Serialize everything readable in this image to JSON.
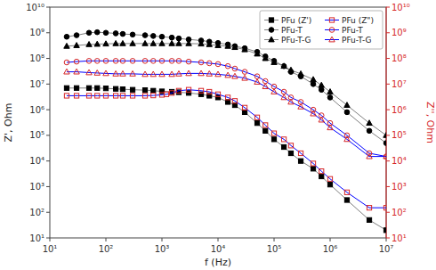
{
  "chart_data": {
    "type": "line",
    "log": true,
    "grid": false,
    "legend": "upper right",
    "xlabel": "f (Hz)",
    "ylabel": "Z', Ohm",
    "y2label": "Z'', Ohm",
    "xlim": [
      10,
      10000000
    ],
    "ylim": [
      10,
      10000000000
    ],
    "y2lim": [
      10,
      10000000000
    ],
    "xticks": [
      {
        "value": 10,
        "label": "10¹"
      },
      {
        "value": 100,
        "label": "10²"
      },
      {
        "value": 1000,
        "label": "10³"
      },
      {
        "value": 10000,
        "label": "10⁴"
      },
      {
        "value": 100000,
        "label": "10⁵"
      },
      {
        "value": 1000000,
        "label": "10⁶"
      },
      {
        "value": 10000000,
        "label": "10⁷"
      }
    ],
    "yticks": [
      {
        "value": 10,
        "label": "10¹"
      },
      {
        "value": 100,
        "label": "10²"
      },
      {
        "value": 1000,
        "label": "10³"
      },
      {
        "value": 10000,
        "label": "10⁴"
      },
      {
        "value": 100000,
        "label": "10⁵"
      },
      {
        "value": 1000000,
        "label": "10⁶"
      },
      {
        "value": 10000000,
        "label": "10⁷"
      },
      {
        "value": 100000000,
        "label": "10⁸"
      },
      {
        "value": 1000000000,
        "label": "10⁹"
      },
      {
        "value": 10000000000,
        "label": "10¹⁰"
      }
    ],
    "y2ticks": [
      {
        "value": 10,
        "label": "10¹"
      },
      {
        "value": 100,
        "label": "10²"
      },
      {
        "value": 1000,
        "label": "10³"
      },
      {
        "value": 10000,
        "label": "10⁴"
      },
      {
        "value": 100000,
        "label": "10⁵"
      },
      {
        "value": 1000000,
        "label": "10⁶"
      },
      {
        "value": 10000000,
        "label": "10⁷"
      },
      {
        "value": 100000000,
        "label": "10⁸"
      },
      {
        "value": 1000000000,
        "label": "10⁹"
      },
      {
        "value": 10000000000,
        "label": "10¹⁰"
      }
    ],
    "series": [
      {
        "name": "PFu (Z')",
        "axis": "y",
        "color": "gray",
        "marker": "square",
        "line_style": "solid",
        "x": [
          20,
          30,
          50,
          70,
          100,
          150,
          200,
          300,
          500,
          700,
          1000,
          1500,
          2000,
          3000,
          5000,
          7000,
          10000,
          15000,
          20000,
          30000,
          50000,
          70000,
          100000,
          150000,
          200000,
          300000,
          500000,
          700000,
          1000000,
          2000000,
          5000000,
          10000000
        ],
        "values": [
          7000000.0,
          7000000.0,
          7000000.0,
          7000000.0,
          6800000.0,
          6500000.0,
          6300000.0,
          6000000.0,
          5800000.0,
          5500000.0,
          5200000.0,
          5000000.0,
          4800000.0,
          4500000.0,
          4000000.0,
          3500000.0,
          3000000.0,
          2000000.0,
          1500000.0,
          800000.0,
          300000.0,
          150000.0,
          70000.0,
          35000.0,
          20000.0,
          10000.0,
          5000.0,
          2500.0,
          1200.0,
          300.0,
          50.0,
          20.0
        ]
      },
      {
        "name": "PFu-T",
        "axis": "y",
        "color": "gray",
        "marker": "circle",
        "line_style": "solid",
        "x": [
          20,
          30,
          50,
          70,
          100,
          150,
          200,
          300,
          500,
          700,
          1000,
          1500,
          2000,
          3000,
          5000,
          7000,
          10000,
          15000,
          20000,
          30000,
          50000,
          70000,
          100000,
          150000,
          200000,
          300000,
          500000,
          700000,
          1000000,
          2000000,
          5000000,
          10000000
        ],
        "values": [
          700000000.0,
          800000000.0,
          1000000000.0,
          1050000000.0,
          1000000000.0,
          950000000.0,
          900000000.0,
          850000000.0,
          800000000.0,
          750000000.0,
          700000000.0,
          650000000.0,
          600000000.0,
          550000000.0,
          500000000.0,
          450000000.0,
          400000000.0,
          350000000.0,
          300000000.0,
          250000000.0,
          180000000.0,
          120000000.0,
          80000000.0,
          50000000.0,
          30000000.0,
          20000000.0,
          10000000.0,
          6000000.0,
          3000000.0,
          800000.0,
          150000.0,
          50000.0
        ]
      },
      {
        "name": "PFu-T-G",
        "axis": "y",
        "color": "gray",
        "marker": "triangle",
        "line_style": "solid",
        "x": [
          20,
          30,
          50,
          70,
          100,
          150,
          200,
          300,
          500,
          700,
          1000,
          1500,
          2000,
          3000,
          5000,
          7000,
          10000,
          15000,
          20000,
          30000,
          50000,
          70000,
          100000,
          150000,
          200000,
          300000,
          500000,
          700000,
          1000000,
          2000000,
          5000000,
          10000000
        ],
        "values": [
          300000000.0,
          320000000.0,
          350000000.0,
          360000000.0,
          370000000.0,
          380000000.0,
          380000000.0,
          380000000.0,
          380000000.0,
          380000000.0,
          380000000.0,
          380000000.0,
          380000000.0,
          380000000.0,
          370000000.0,
          350000000.0,
          320000000.0,
          300000000.0,
          270000000.0,
          220000000.0,
          150000000.0,
          100000000.0,
          70000000.0,
          50000000.0,
          35000000.0,
          25000000.0,
          15000000.0,
          9000000.0,
          5000000.0,
          1500000.0,
          300000.0,
          100000.0
        ]
      },
      {
        "name": "PFu (Z\")",
        "axis": "y2",
        "color": "blue",
        "marker": "square",
        "line_style": "solid",
        "x": [
          20,
          30,
          50,
          70,
          100,
          150,
          200,
          300,
          500,
          700,
          1000,
          1200,
          1500,
          2000,
          3000,
          5000,
          7000,
          10000,
          15000,
          20000,
          30000,
          50000,
          70000,
          100000,
          150000,
          200000,
          300000,
          500000,
          700000,
          1000000,
          2000000,
          5000000,
          10000000
        ],
        "values": [
          3500000.0,
          3500000.0,
          3500000.0,
          3500000.0,
          3500000.0,
          3500000.0,
          3500000.0,
          3500000.0,
          3500000.0,
          3600000.0,
          3800000.0,
          4000000.0,
          4500000.0,
          5500000.0,
          6000000.0,
          5500000.0,
          5000000.0,
          4000000.0,
          3000000.0,
          2200000.0,
          1200000.0,
          500000.0,
          250000.0,
          120000.0,
          70000.0,
          40000.0,
          20000.0,
          8000.0,
          4000.0,
          2000.0,
          600.0,
          150.0,
          150.0
        ]
      },
      {
        "name": "PFu-T",
        "axis": "y2",
        "color": "blue",
        "marker": "circle",
        "line_style": "solid",
        "x": [
          20,
          30,
          50,
          70,
          100,
          150,
          200,
          300,
          500,
          700,
          1000,
          1500,
          2000,
          3000,
          5000,
          7000,
          10000,
          15000,
          20000,
          30000,
          50000,
          70000,
          100000,
          150000,
          200000,
          300000,
          500000,
          700000,
          1000000,
          2000000,
          5000000,
          10000000
        ],
        "values": [
          70000000.0,
          75000000.0,
          80000000.0,
          80000000.0,
          80000000.0,
          80000000.0,
          80000000.0,
          80000000.0,
          80000000.0,
          80000000.0,
          80000000.0,
          80000000.0,
          80000000.0,
          75000000.0,
          70000000.0,
          65000000.0,
          60000000.0,
          50000000.0,
          40000000.0,
          30000000.0,
          20000000.0,
          13000000.0,
          8000000.0,
          5000000.0,
          3000000.0,
          2000000.0,
          1000000.0,
          600000.0,
          300000.0,
          100000.0,
          20000.0,
          15000.0
        ]
      },
      {
        "name": "PFu-T-G",
        "axis": "y2",
        "color": "blue",
        "marker": "triangle",
        "line_style": "solid",
        "x": [
          20,
          30,
          50,
          70,
          100,
          150,
          200,
          300,
          500,
          700,
          1000,
          1500,
          2000,
          3000,
          5000,
          7000,
          10000,
          15000,
          20000,
          30000,
          50000,
          70000,
          100000,
          150000,
          200000,
          300000,
          500000,
          700000,
          1000000,
          2000000,
          5000000,
          10000000
        ],
        "values": [
          30000000.0,
          30000000.0,
          28000000.0,
          27000000.0,
          26000000.0,
          25000000.0,
          25000000.0,
          25000000.0,
          24000000.0,
          24000000.0,
          24000000.0,
          24000000.0,
          25000000.0,
          26000000.0,
          26000000.0,
          25000000.0,
          24000000.0,
          22000000.0,
          20000000.0,
          17000000.0,
          12000000.0,
          8000000.0,
          5000000.0,
          3000000.0,
          2000000.0,
          1300000.0,
          700000.0,
          400000.0,
          200000.0,
          70000.0,
          15000.0,
          15000.0
        ]
      }
    ]
  }
}
